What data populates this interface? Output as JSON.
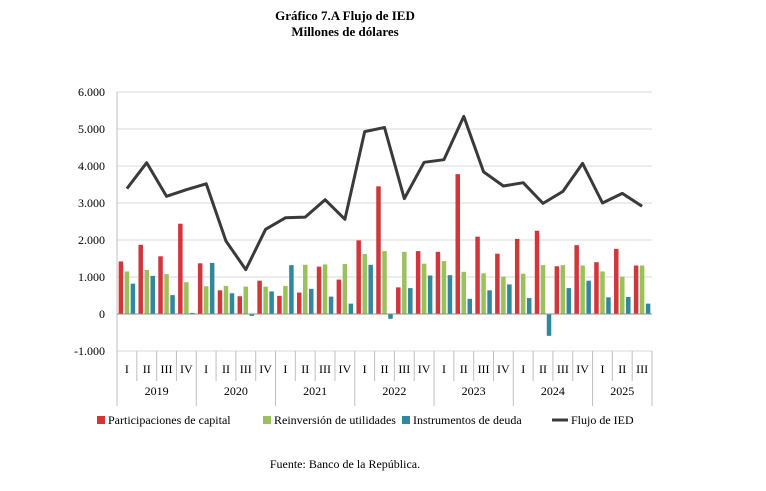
{
  "chart_data": {
    "type": "bar",
    "title": "Gráfico 7.A Flujo de IED",
    "subtitle": "Millones de dólares",
    "source": "Fuente: Banco de la República.",
    "years": [
      {
        "label": "2019",
        "quarters": 4
      },
      {
        "label": "2020",
        "quarters": 4
      },
      {
        "label": "2021",
        "quarters": 4
      },
      {
        "label": "2022",
        "quarters": 4
      },
      {
        "label": "2023",
        "quarters": 4
      },
      {
        "label": "2024",
        "quarters": 4
      },
      {
        "label": "2025",
        "quarters": 3
      }
    ],
    "categories": [
      "I",
      "II",
      "III",
      "IV",
      "I",
      "II",
      "III",
      "IV",
      "I",
      "II",
      "III",
      "IV",
      "I",
      "II",
      "III",
      "IV",
      "I",
      "II",
      "III",
      "IV",
      "I",
      "II",
      "III",
      "IV",
      "I",
      "II",
      "III"
    ],
    "ylim": [
      -1000,
      6000
    ],
    "yticks": [
      -1000,
      0,
      1000,
      2000,
      3000,
      4000,
      5000,
      6000
    ],
    "ytick_labels": [
      "-1.000",
      "0",
      "1.000",
      "2.000",
      "3.000",
      "4.000",
      "5.000",
      "6.000"
    ],
    "grid": true,
    "legend_position": "bottom",
    "series": [
      {
        "name": "Participaciones de capital",
        "kind": "bar",
        "color": "#d1363b",
        "values": [
          1420,
          1870,
          1560,
          2440,
          1370,
          640,
          480,
          900,
          490,
          580,
          1280,
          930,
          1990,
          3450,
          720,
          1700,
          1680,
          3780,
          2090,
          1630,
          2030,
          2250,
          1290,
          1860,
          1400,
          1760,
          1310
        ]
      },
      {
        "name": "Reinversión de utilidades",
        "kind": "bar",
        "color": "#9bc15a",
        "values": [
          1150,
          1190,
          1080,
          860,
          750,
          760,
          740,
          740,
          760,
          1330,
          1340,
          1350,
          1620,
          1700,
          1680,
          1360,
          1430,
          1140,
          1100,
          1010,
          1090,
          1320,
          1320,
          1310,
          1150,
          1010,
          1310
        ]
      },
      {
        "name": "Instrumentos de deuda",
        "kind": "bar",
        "color": "#31879b",
        "values": [
          820,
          1030,
          510,
          30,
          1380,
          560,
          -50,
          610,
          1320,
          680,
          470,
          280,
          1330,
          -130,
          700,
          1040,
          1050,
          410,
          640,
          800,
          430,
          -590,
          700,
          900,
          450,
          460,
          280
        ]
      },
      {
        "name": "Flujo de IED",
        "kind": "line",
        "color": "#3a3a3a",
        "values": [
          3390,
          4090,
          3180,
          3360,
          3520,
          1970,
          1200,
          2290,
          2600,
          2620,
          3090,
          2560,
          4930,
          5040,
          3120,
          4100,
          4170,
          5340,
          3840,
          3460,
          3550,
          2990,
          3310,
          4070,
          3000,
          3260,
          2910
        ]
      }
    ]
  }
}
